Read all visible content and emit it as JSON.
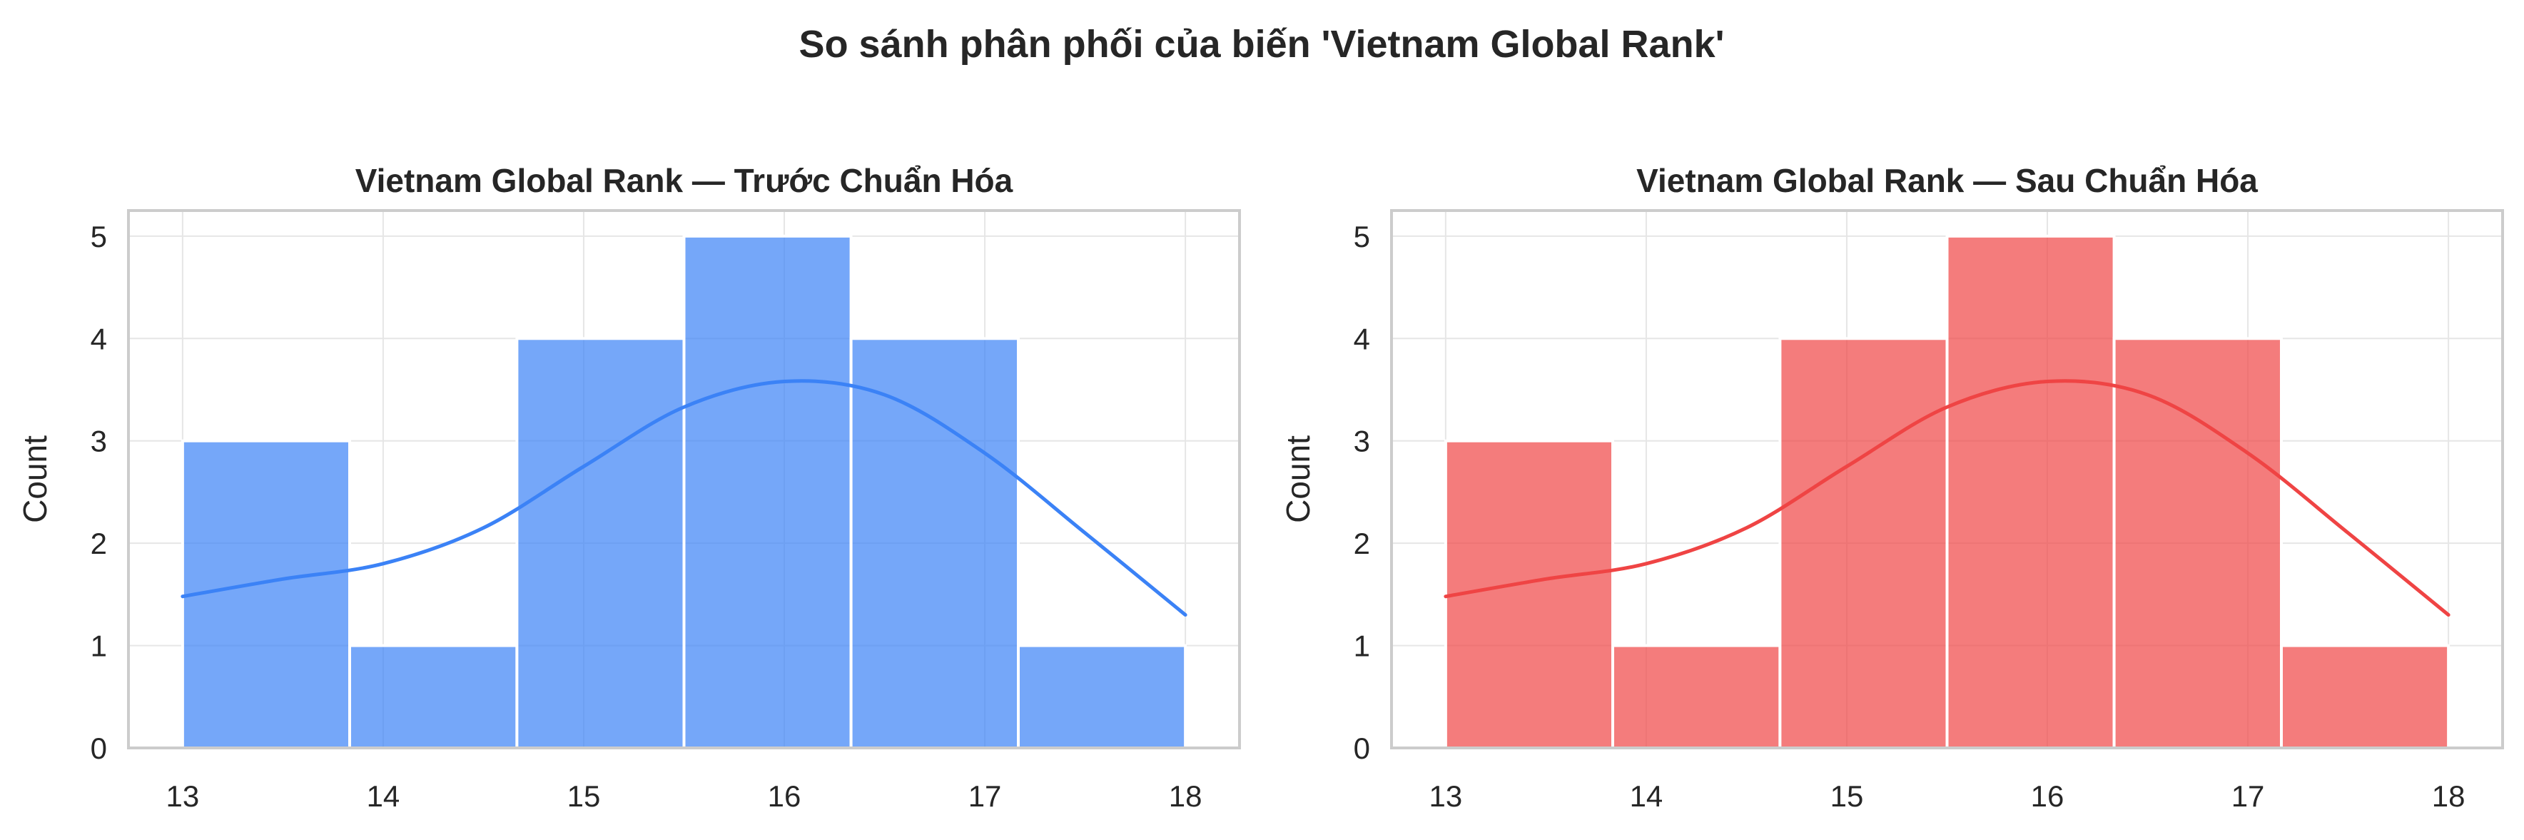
{
  "figure": {
    "title": "So sánh phân phối của biến 'Vietnam Global Rank'"
  },
  "chart_data": [
    {
      "type": "bar",
      "title": "Vietnam Global Rank — Trước Chuẩn Hóa",
      "xlabel": "",
      "ylabel": "Count",
      "bin_edges": [
        13,
        13.833,
        14.667,
        15.5,
        16.333,
        17.167,
        18
      ],
      "values": [
        3,
        1,
        4,
        5,
        4,
        1
      ],
      "xlim": [
        12.73,
        18.27
      ],
      "ylim": [
        0,
        5.25
      ],
      "xticks": [
        13,
        14,
        15,
        16,
        17,
        18
      ],
      "yticks": [
        0,
        1,
        2,
        3,
        4,
        5
      ],
      "grid": true,
      "bar_color": "#3b82f6",
      "kde": {
        "x": [
          13,
          13.5,
          14,
          14.5,
          15,
          15.5,
          16,
          16.5,
          17,
          17.5,
          18
        ],
        "y": [
          1.48,
          1.65,
          1.8,
          2.15,
          2.75,
          3.33,
          3.58,
          3.45,
          2.88,
          2.1,
          1.3
        ]
      }
    },
    {
      "type": "bar",
      "title": "Vietnam Global Rank — Sau Chuẩn Hóa",
      "xlabel": "",
      "ylabel": "Count",
      "bin_edges": [
        13,
        13.833,
        14.667,
        15.5,
        16.333,
        17.167,
        18
      ],
      "values": [
        3,
        1,
        4,
        5,
        4,
        1
      ],
      "xlim": [
        12.73,
        18.27
      ],
      "ylim": [
        0,
        5.25
      ],
      "xticks": [
        13,
        14,
        15,
        16,
        17,
        18
      ],
      "yticks": [
        0,
        1,
        2,
        3,
        4,
        5
      ],
      "grid": true,
      "bar_color": "#ef4444",
      "kde": {
        "x": [
          13,
          13.5,
          14,
          14.5,
          15,
          15.5,
          16,
          16.5,
          17,
          17.5,
          18
        ],
        "y": [
          1.48,
          1.65,
          1.8,
          2.15,
          2.75,
          3.33,
          3.58,
          3.45,
          2.88,
          2.1,
          1.3
        ]
      }
    }
  ]
}
